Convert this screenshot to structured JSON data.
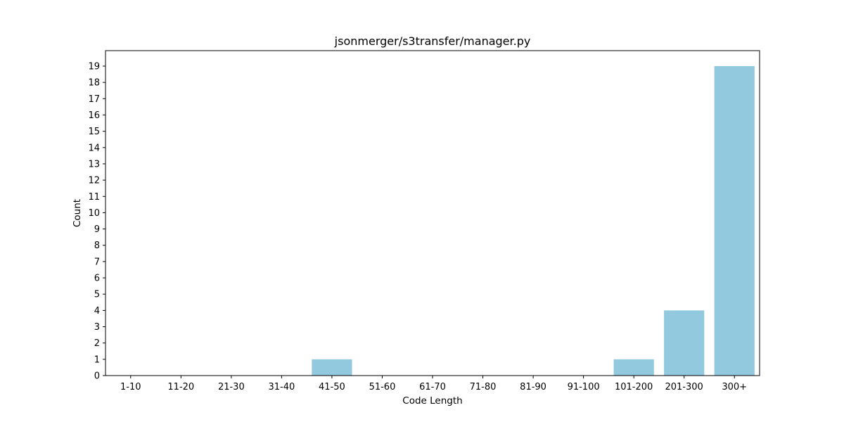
{
  "chart_data": {
    "type": "bar",
    "title": "jsonmerger/s3transfer/manager.py",
    "xlabel": "Code Length",
    "ylabel": "Count",
    "categories": [
      "1-10",
      "11-20",
      "21-30",
      "31-40",
      "41-50",
      "51-60",
      "61-70",
      "71-80",
      "81-90",
      "91-100",
      "101-200",
      "201-300",
      "300+"
    ],
    "values": [
      0,
      0,
      0,
      0,
      1,
      0,
      0,
      0,
      0,
      0,
      1,
      4,
      19
    ],
    "ylim": [
      0,
      19.95
    ],
    "yticks": [
      0,
      1,
      2,
      3,
      4,
      5,
      6,
      7,
      8,
      9,
      10,
      11,
      12,
      13,
      14,
      15,
      16,
      17,
      18,
      19
    ],
    "grid": false,
    "bar_color": "#92c9df"
  }
}
